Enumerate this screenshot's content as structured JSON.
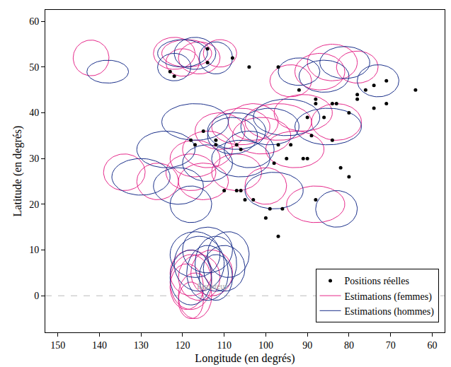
{
  "chart_data": {
    "type": "scatter",
    "x_label": "Longitude (en degrés)",
    "y_label": "Latitude (en degrés)",
    "xlim": [
      153,
      57
    ],
    "ylim": [
      -8,
      62.5
    ],
    "xticks": [
      150,
      140,
      130,
      120,
      110,
      100,
      90,
      80,
      70,
      60
    ],
    "yticks": [
      0,
      10,
      20,
      30,
      40,
      50,
      60
    ],
    "grid": false,
    "legend": "lower right",
    "hlines": [
      {
        "y": 0,
        "label": "Équateur",
        "label_x": 113,
        "line_style": "dashed",
        "color": "#bbbbbb"
      }
    ],
    "series": [
      {
        "name": "Positions réelles",
        "type": "scatter",
        "marker": "circle",
        "color": "#000000",
        "x": [
          123,
          122,
          114,
          114,
          108,
          104,
          97,
          92,
          88,
          88,
          84,
          83,
          80,
          78,
          78,
          76,
          74,
          71,
          64,
          74,
          71,
          90,
          86,
          84,
          89,
          94,
          91,
          97,
          98,
          95,
          90,
          118,
          117,
          115,
          112,
          107,
          106,
          112,
          107,
          106,
          105,
          103,
          110,
          100,
          99,
          96,
          97,
          88,
          82,
          80
        ],
        "y": [
          49,
          48,
          54,
          51,
          52,
          50,
          50,
          45,
          43,
          42,
          42,
          42,
          40,
          44,
          43,
          45,
          46,
          47,
          45,
          41,
          42,
          39,
          39,
          34,
          35,
          33,
          30,
          33,
          29,
          30,
          30,
          34,
          33,
          36,
          33,
          33,
          32,
          34,
          23,
          23,
          21,
          21,
          23,
          17,
          19,
          19,
          13,
          21,
          28,
          26
        ]
      },
      {
        "name": "Estimations (femmes)",
        "type": "ellipse",
        "color": "#e6288a",
        "x": [
          142,
          122,
          119,
          116,
          120,
          111,
          94,
          87,
          84,
          78,
          103,
          97,
          91,
          83,
          101,
          93,
          111,
          114,
          117,
          115,
          118,
          126,
          134,
          107,
          100,
          106,
          88,
          118,
          119,
          117,
          118,
          116,
          113,
          118
        ],
        "y": [
          52,
          53,
          53,
          52,
          51,
          53,
          47,
          49,
          51,
          50,
          38,
          38,
          40,
          38,
          35,
          32,
          36,
          32,
          30,
          25,
          27,
          25,
          27,
          27,
          24,
          37,
          20,
          3,
          2,
          0,
          5,
          4,
          5,
          -1
        ],
        "x_radius": [
          4.3,
          5,
          6,
          5,
          4,
          4,
          5,
          6,
          6,
          5,
          6,
          8,
          7,
          6,
          7,
          7,
          6,
          6,
          6,
          6,
          6,
          5,
          5,
          6,
          5,
          7,
          7,
          5,
          4,
          4,
          5,
          5,
          5,
          3
        ],
        "y_radius": [
          3.9,
          3.5,
          3,
          3.5,
          3,
          3,
          3.5,
          4,
          4,
          3.5,
          4,
          4,
          4,
          4,
          4,
          4,
          4,
          4,
          4,
          4,
          4,
          4,
          4,
          4,
          4,
          4,
          4,
          6,
          5,
          5,
          5,
          5,
          5,
          4
        ]
      },
      {
        "name": "Estimations (hommes)",
        "type": "ellipse",
        "color": "#1a2f8a",
        "x": [
          138,
          120,
          117,
          112,
          122,
          92,
          86,
          81,
          73,
          117,
          108,
          107,
          99,
          95,
          85,
          124,
          106,
          121,
          130,
          118,
          98,
          104,
          114,
          83,
          116,
          112,
          110,
          114,
          117,
          118,
          109,
          114,
          112
        ],
        "y": [
          49,
          53,
          53,
          52,
          50,
          49,
          48,
          51,
          47,
          38,
          35,
          36,
          37,
          39,
          37,
          32,
          30,
          24,
          26,
          20,
          23,
          32,
          29,
          19,
          7,
          7,
          6,
          5,
          9,
          4,
          9,
          10,
          4
        ],
        "x_radius": [
          5,
          6,
          5,
          4,
          4,
          5,
          6,
          6,
          5,
          8,
          6,
          7,
          7,
          8,
          8,
          7,
          7,
          6,
          7,
          5,
          7,
          6,
          6,
          5,
          6,
          5,
          5,
          5,
          6,
          5,
          5,
          6,
          4
        ],
        "y_radius": [
          2.5,
          3,
          3.5,
          3.5,
          3,
          3,
          3.5,
          3.5,
          3.5,
          4,
          4,
          4,
          4,
          4,
          4,
          4,
          4,
          4,
          4,
          4,
          4,
          4,
          4,
          4,
          6,
          6,
          5,
          6,
          5,
          6,
          5,
          5,
          5
        ]
      }
    ]
  }
}
